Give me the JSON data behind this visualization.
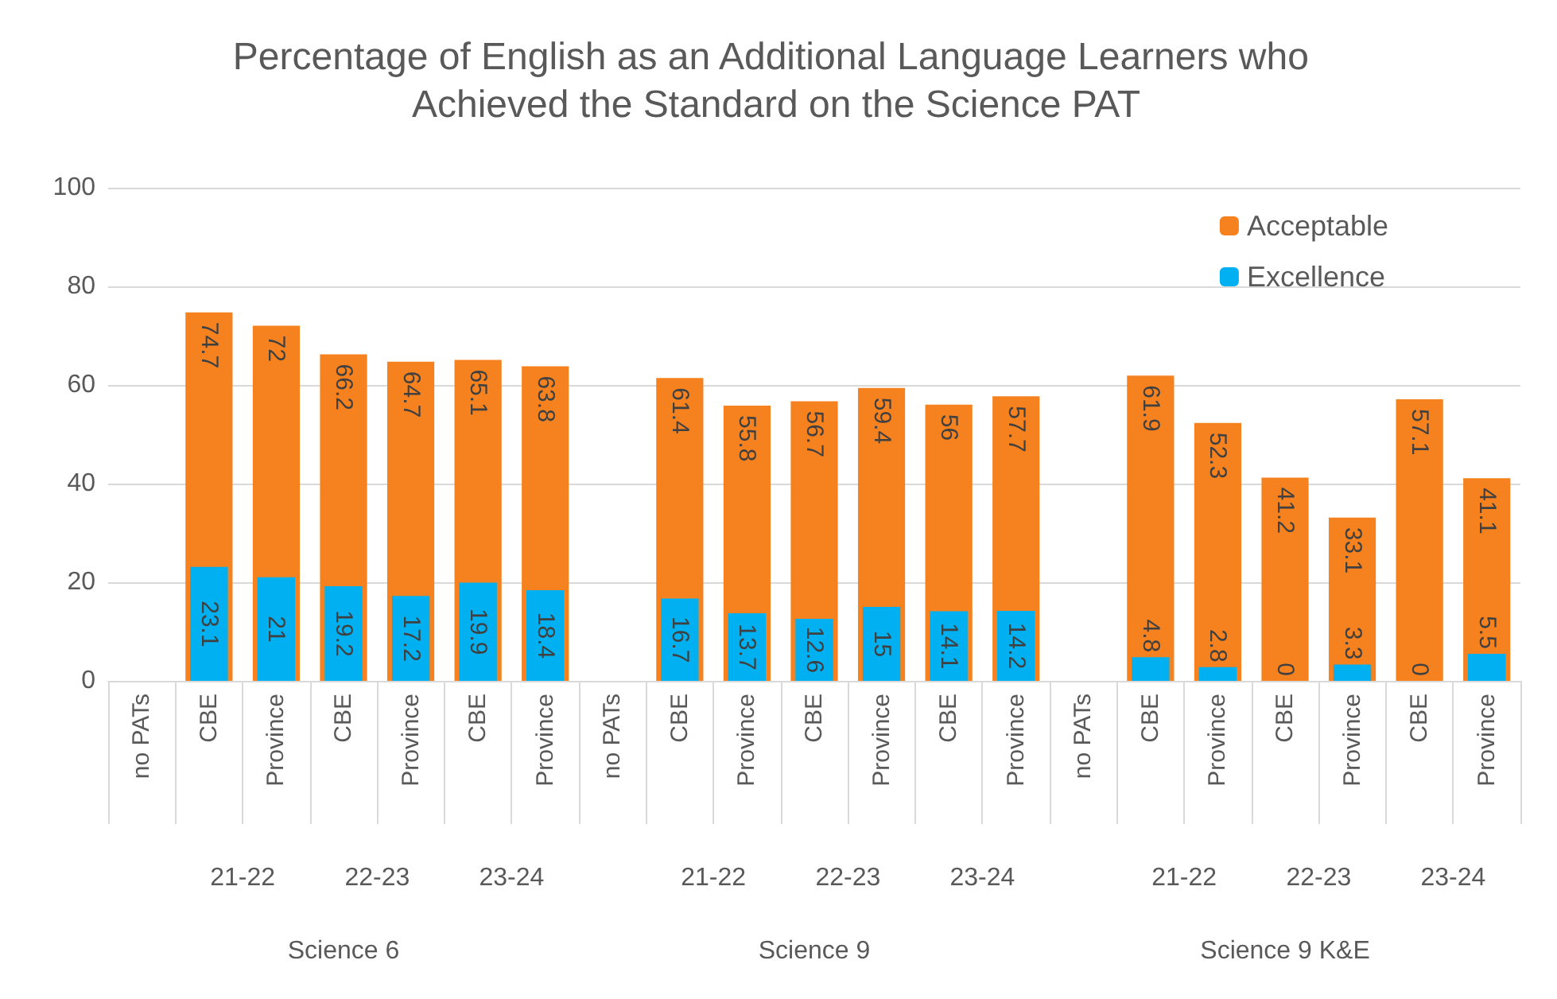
{
  "chart_data": {
    "type": "bar",
    "title": "Percentage of English as an Additional Language Learners who Achieved the Standard on the Science PAT",
    "categories": [
      "no PATs",
      "CBE",
      "Province",
      "CBE",
      "Province",
      "CBE",
      "Province",
      "no PATs",
      "CBE",
      "Province",
      "CBE",
      "Province",
      "CBE",
      "Province",
      "no PATs",
      "CBE",
      "Province",
      "CBE",
      "Province",
      "CBE",
      "Province"
    ],
    "series": [
      {
        "name": "Acceptable",
        "color": "#f5821f",
        "values": [
          null,
          74.7,
          72,
          66.2,
          64.7,
          65.1,
          63.8,
          null,
          61.4,
          55.8,
          56.7,
          59.4,
          56,
          57.7,
          null,
          61.9,
          52.3,
          41.2,
          33.1,
          57.1,
          41.1
        ]
      },
      {
        "name": "Excellence",
        "color": "#00b0f0",
        "values": [
          null,
          23.1,
          21,
          19.2,
          17.2,
          19.9,
          18.4,
          null,
          16.7,
          13.7,
          12.6,
          15,
          14.1,
          14.2,
          null,
          4.8,
          2.8,
          0,
          3.3,
          0,
          5.5
        ]
      }
    ],
    "annotations": [
      "21-22",
      "22-23",
      "23-24",
      "21-22",
      "22-23",
      "23-24",
      "21-22",
      "22-23",
      "23-24",
      "Science 6",
      "Science 9",
      "Science 9 K&E"
    ],
    "ylim": [
      0,
      100
    ],
    "yticks": [
      0,
      20,
      40,
      60,
      80,
      100
    ],
    "grid": "y",
    "legend": "top right",
    "data_labels": true
  }
}
